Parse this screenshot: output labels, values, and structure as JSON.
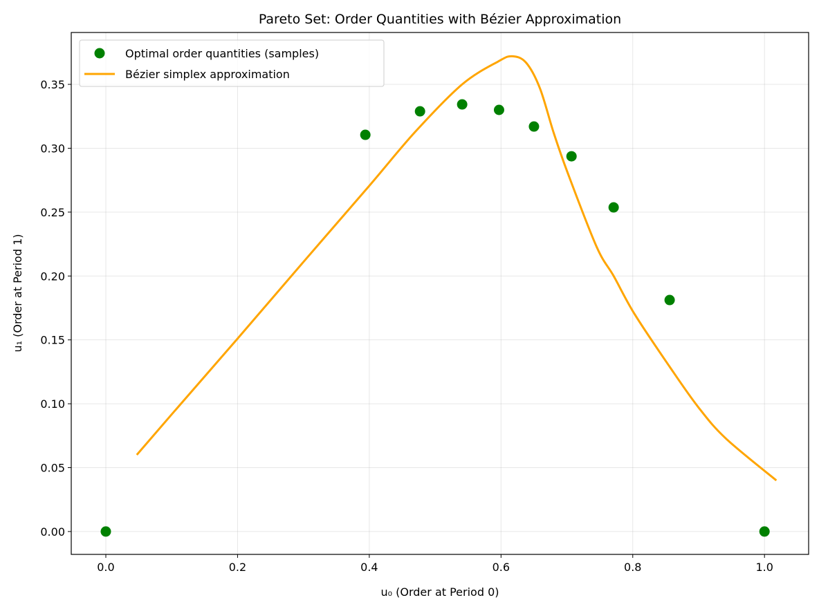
{
  "chart_data": {
    "type": "scatter",
    "title": "Pareto Set: Order Quantities with Bézier Approximation",
    "xlabel": "u₀ (Order at Period 0)",
    "ylabel": "u₁ (Order at Period 1)",
    "xlim": [
      -0.0525,
      1.067
    ],
    "ylim": [
      -0.0179,
      0.3906
    ],
    "xticks": [
      0.0,
      0.2,
      0.4,
      0.6,
      0.8,
      1.0
    ],
    "xtick_labels": [
      "0.0",
      "0.2",
      "0.4",
      "0.6",
      "0.8",
      "1.0"
    ],
    "yticks": [
      0.0,
      0.05,
      0.1,
      0.15,
      0.2,
      0.25,
      0.3,
      0.35
    ],
    "ytick_labels": [
      "0.00",
      "0.05",
      "0.10",
      "0.15",
      "0.20",
      "0.25",
      "0.30",
      "0.35"
    ],
    "grid": true,
    "legend_position": "top-left",
    "series": [
      {
        "name": "Optimal order quantities (samples)",
        "kind": "scatter",
        "color": "#008000",
        "x": [
          0.0,
          0.394,
          0.477,
          0.541,
          0.597,
          0.65,
          0.707,
          0.771,
          0.856,
          1.0
        ],
        "y": [
          0.0,
          0.3105,
          0.3289,
          0.3343,
          0.33,
          0.317,
          0.2937,
          0.2537,
          0.1812,
          0.0
        ]
      },
      {
        "name": "Bézier simplex approximation",
        "kind": "line",
        "color": "#ffa500",
        "x": [
          0.047,
          0.1,
          0.2,
          0.3,
          0.399,
          0.47,
          0.541,
          0.596,
          0.617,
          0.638,
          0.659,
          0.68,
          0.701,
          0.745,
          0.771,
          0.803,
          0.856,
          0.9,
          0.942,
          1.018
        ],
        "y": [
          0.06,
          0.0917,
          0.151,
          0.211,
          0.27,
          0.313,
          0.35,
          0.368,
          0.372,
          0.367,
          0.347,
          0.312,
          0.281,
          0.223,
          0.2,
          0.17,
          0.129,
          0.097,
          0.0725,
          0.04
        ]
      }
    ]
  }
}
